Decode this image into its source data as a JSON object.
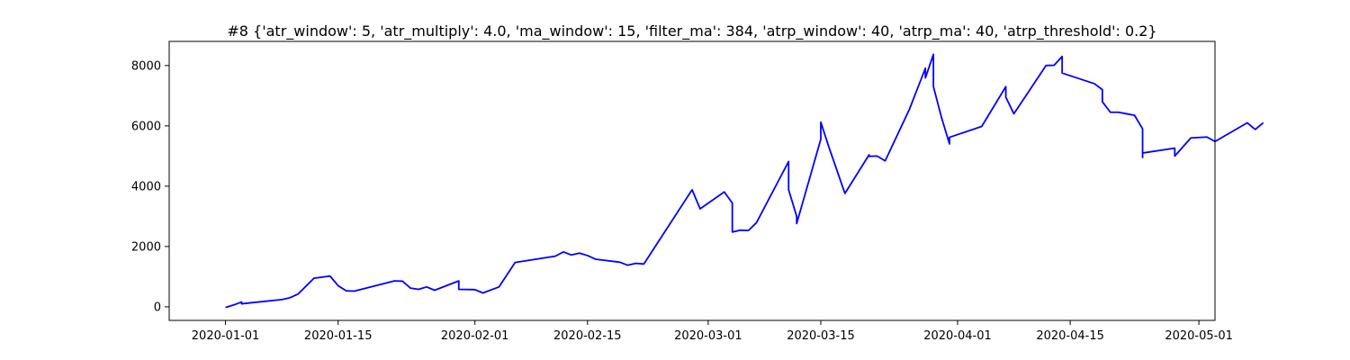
{
  "chart_data": {
    "type": "line",
    "title": "#8 {'atr_window': 5, 'atr_multiply': 4.0, 'ma_window': 15, 'filter_ma': 384, 'atrp_window': 40, 'atrp_ma': 40, 'atrp_threshold': 0.2}",
    "xlabel": "",
    "ylabel": "",
    "x_axis_type": "date",
    "xlim": [
      "2019-12-25",
      "2020-05-03"
    ],
    "ylim": [
      -450,
      8800
    ],
    "x_ticks": [
      "2020-01-01",
      "2020-01-15",
      "2020-02-01",
      "2020-02-15",
      "2020-03-01",
      "2020-03-15",
      "2020-04-01",
      "2020-04-15",
      "2020-05-01"
    ],
    "y_ticks": [
      0,
      2000,
      4000,
      6000,
      8000
    ],
    "grid": false,
    "legend": "none",
    "series": [
      {
        "color": "#0000ff",
        "points": [
          [
            "2020-01-01",
            -20
          ],
          [
            "2020-01-02",
            60
          ],
          [
            "2020-01-03",
            160
          ],
          [
            "2020-01-03",
            100
          ],
          [
            "2020-01-04",
            130
          ],
          [
            "2020-01-08",
            240
          ],
          [
            "2020-01-09",
            300
          ],
          [
            "2020-01-10",
            420
          ],
          [
            "2020-01-12",
            950
          ],
          [
            "2020-01-14",
            1020
          ],
          [
            "2020-01-15",
            700
          ],
          [
            "2020-01-16",
            530
          ],
          [
            "2020-01-17",
            520
          ],
          [
            "2020-01-22",
            860
          ],
          [
            "2020-01-23",
            850
          ],
          [
            "2020-01-24",
            620
          ],
          [
            "2020-01-25",
            580
          ],
          [
            "2020-01-26",
            660
          ],
          [
            "2020-01-27",
            550
          ],
          [
            "2020-01-30",
            860
          ],
          [
            "2020-01-30",
            580
          ],
          [
            "2020-02-01",
            570
          ],
          [
            "2020-02-02",
            460
          ],
          [
            "2020-02-04",
            660
          ],
          [
            "2020-02-06",
            1470
          ],
          [
            "2020-02-11",
            1680
          ],
          [
            "2020-02-12",
            1820
          ],
          [
            "2020-02-13",
            1720
          ],
          [
            "2020-02-14",
            1780
          ],
          [
            "2020-02-15",
            1700
          ],
          [
            "2020-02-16",
            1580
          ],
          [
            "2020-02-19",
            1480
          ],
          [
            "2020-02-20",
            1380
          ],
          [
            "2020-02-21",
            1440
          ],
          [
            "2020-02-22",
            1420
          ],
          [
            "2020-02-28",
            3880
          ],
          [
            "2020-02-29",
            3250
          ],
          [
            "2020-03-03",
            3810
          ],
          [
            "2020-03-04",
            3440
          ],
          [
            "2020-03-04",
            2480
          ],
          [
            "2020-03-05",
            2540
          ],
          [
            "2020-03-06",
            2530
          ],
          [
            "2020-03-07",
            2790
          ],
          [
            "2020-03-11",
            4820
          ],
          [
            "2020-03-11",
            3880
          ],
          [
            "2020-03-12",
            3000
          ],
          [
            "2020-03-12",
            2760
          ],
          [
            "2020-03-15",
            5560
          ],
          [
            "2020-03-15",
            6120
          ],
          [
            "2020-03-16",
            5300
          ],
          [
            "2020-03-18",
            3760
          ],
          [
            "2020-03-21",
            5040
          ],
          [
            "2020-03-21",
            4990
          ],
          [
            "2020-03-22",
            5000
          ],
          [
            "2020-03-23",
            4840
          ],
          [
            "2020-03-26",
            6540
          ],
          [
            "2020-03-28",
            7910
          ],
          [
            "2020-03-28",
            7590
          ],
          [
            "2020-03-29",
            8370
          ],
          [
            "2020-03-29",
            7300
          ],
          [
            "2020-03-30",
            6280
          ],
          [
            "2020-03-31",
            5400
          ],
          [
            "2020-03-31",
            5620
          ],
          [
            "2020-04-04",
            5980
          ],
          [
            "2020-04-05",
            6420
          ],
          [
            "2020-04-07",
            7300
          ],
          [
            "2020-04-07",
            6950
          ],
          [
            "2020-04-08",
            6400
          ],
          [
            "2020-04-12",
            8000
          ],
          [
            "2020-04-13",
            8010
          ],
          [
            "2020-04-14",
            8300
          ],
          [
            "2020-04-14",
            7750
          ],
          [
            "2020-04-18",
            7400
          ],
          [
            "2020-04-19",
            7200
          ],
          [
            "2020-04-19",
            6800
          ],
          [
            "2020-04-20",
            6450
          ],
          [
            "2020-04-21",
            6450
          ],
          [
            "2020-04-22",
            6400
          ],
          [
            "2020-04-23",
            6350
          ],
          [
            "2020-04-24",
            5900
          ],
          [
            "2020-04-24",
            4950
          ],
          [
            "2020-04-24",
            5100
          ],
          [
            "2020-04-28",
            5260
          ],
          [
            "2020-04-28",
            5000
          ],
          [
            "2020-04-30",
            5600
          ],
          [
            "2020-05-02",
            5630
          ],
          [
            "2020-05-03",
            5480
          ],
          [
            "2020-05-07",
            6100
          ],
          [
            "2020-05-08",
            5880
          ],
          [
            "2020-05-09",
            6100
          ]
        ]
      }
    ]
  }
}
